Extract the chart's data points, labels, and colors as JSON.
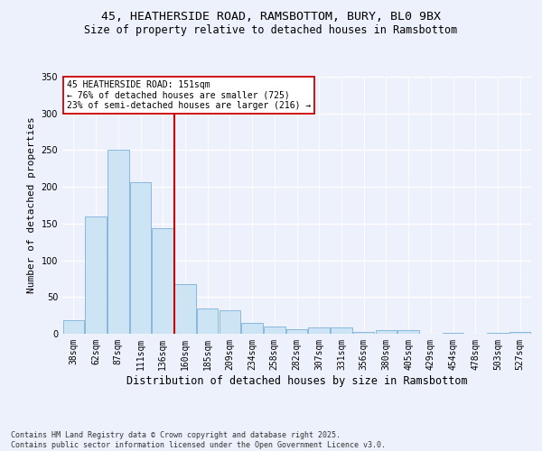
{
  "title_line1": "45, HEATHERSIDE ROAD, RAMSBOTTOM, BURY, BL0 9BX",
  "title_line2": "Size of property relative to detached houses in Ramsbottom",
  "xlabel": "Distribution of detached houses by size in Ramsbottom",
  "ylabel": "Number of detached properties",
  "categories": [
    "38sqm",
    "62sqm",
    "87sqm",
    "111sqm",
    "136sqm",
    "160sqm",
    "185sqm",
    "209sqm",
    "234sqm",
    "258sqm",
    "282sqm",
    "307sqm",
    "331sqm",
    "356sqm",
    "380sqm",
    "405sqm",
    "429sqm",
    "454sqm",
    "478sqm",
    "503sqm",
    "527sqm"
  ],
  "values": [
    18,
    160,
    251,
    206,
    144,
    67,
    35,
    32,
    15,
    10,
    6,
    8,
    8,
    3,
    5,
    5,
    0,
    1,
    0,
    1,
    2
  ],
  "bar_color": "#cde4f5",
  "bar_edge_color": "#7ab0d8",
  "vline_x_index": 4.5,
  "vline_color": "#cc0000",
  "annotation_line1": "45 HEATHERSIDE ROAD: 151sqm",
  "annotation_line2": "← 76% of detached houses are smaller (725)",
  "annotation_line3": "23% of semi-detached houses are larger (216) →",
  "ylim_max": 350,
  "yticks": [
    0,
    50,
    100,
    150,
    200,
    250,
    300,
    350
  ],
  "footnote": "Contains HM Land Registry data © Crown copyright and database right 2025.\nContains public sector information licensed under the Open Government Licence v3.0.",
  "bg_color": "#edf1fb",
  "title_fontsize": 9.5,
  "subtitle_fontsize": 8.5,
  "ylabel_fontsize": 8,
  "xlabel_fontsize": 8.5,
  "tick_fontsize": 7,
  "footnote_fontsize": 6,
  "ann_fontsize": 7
}
